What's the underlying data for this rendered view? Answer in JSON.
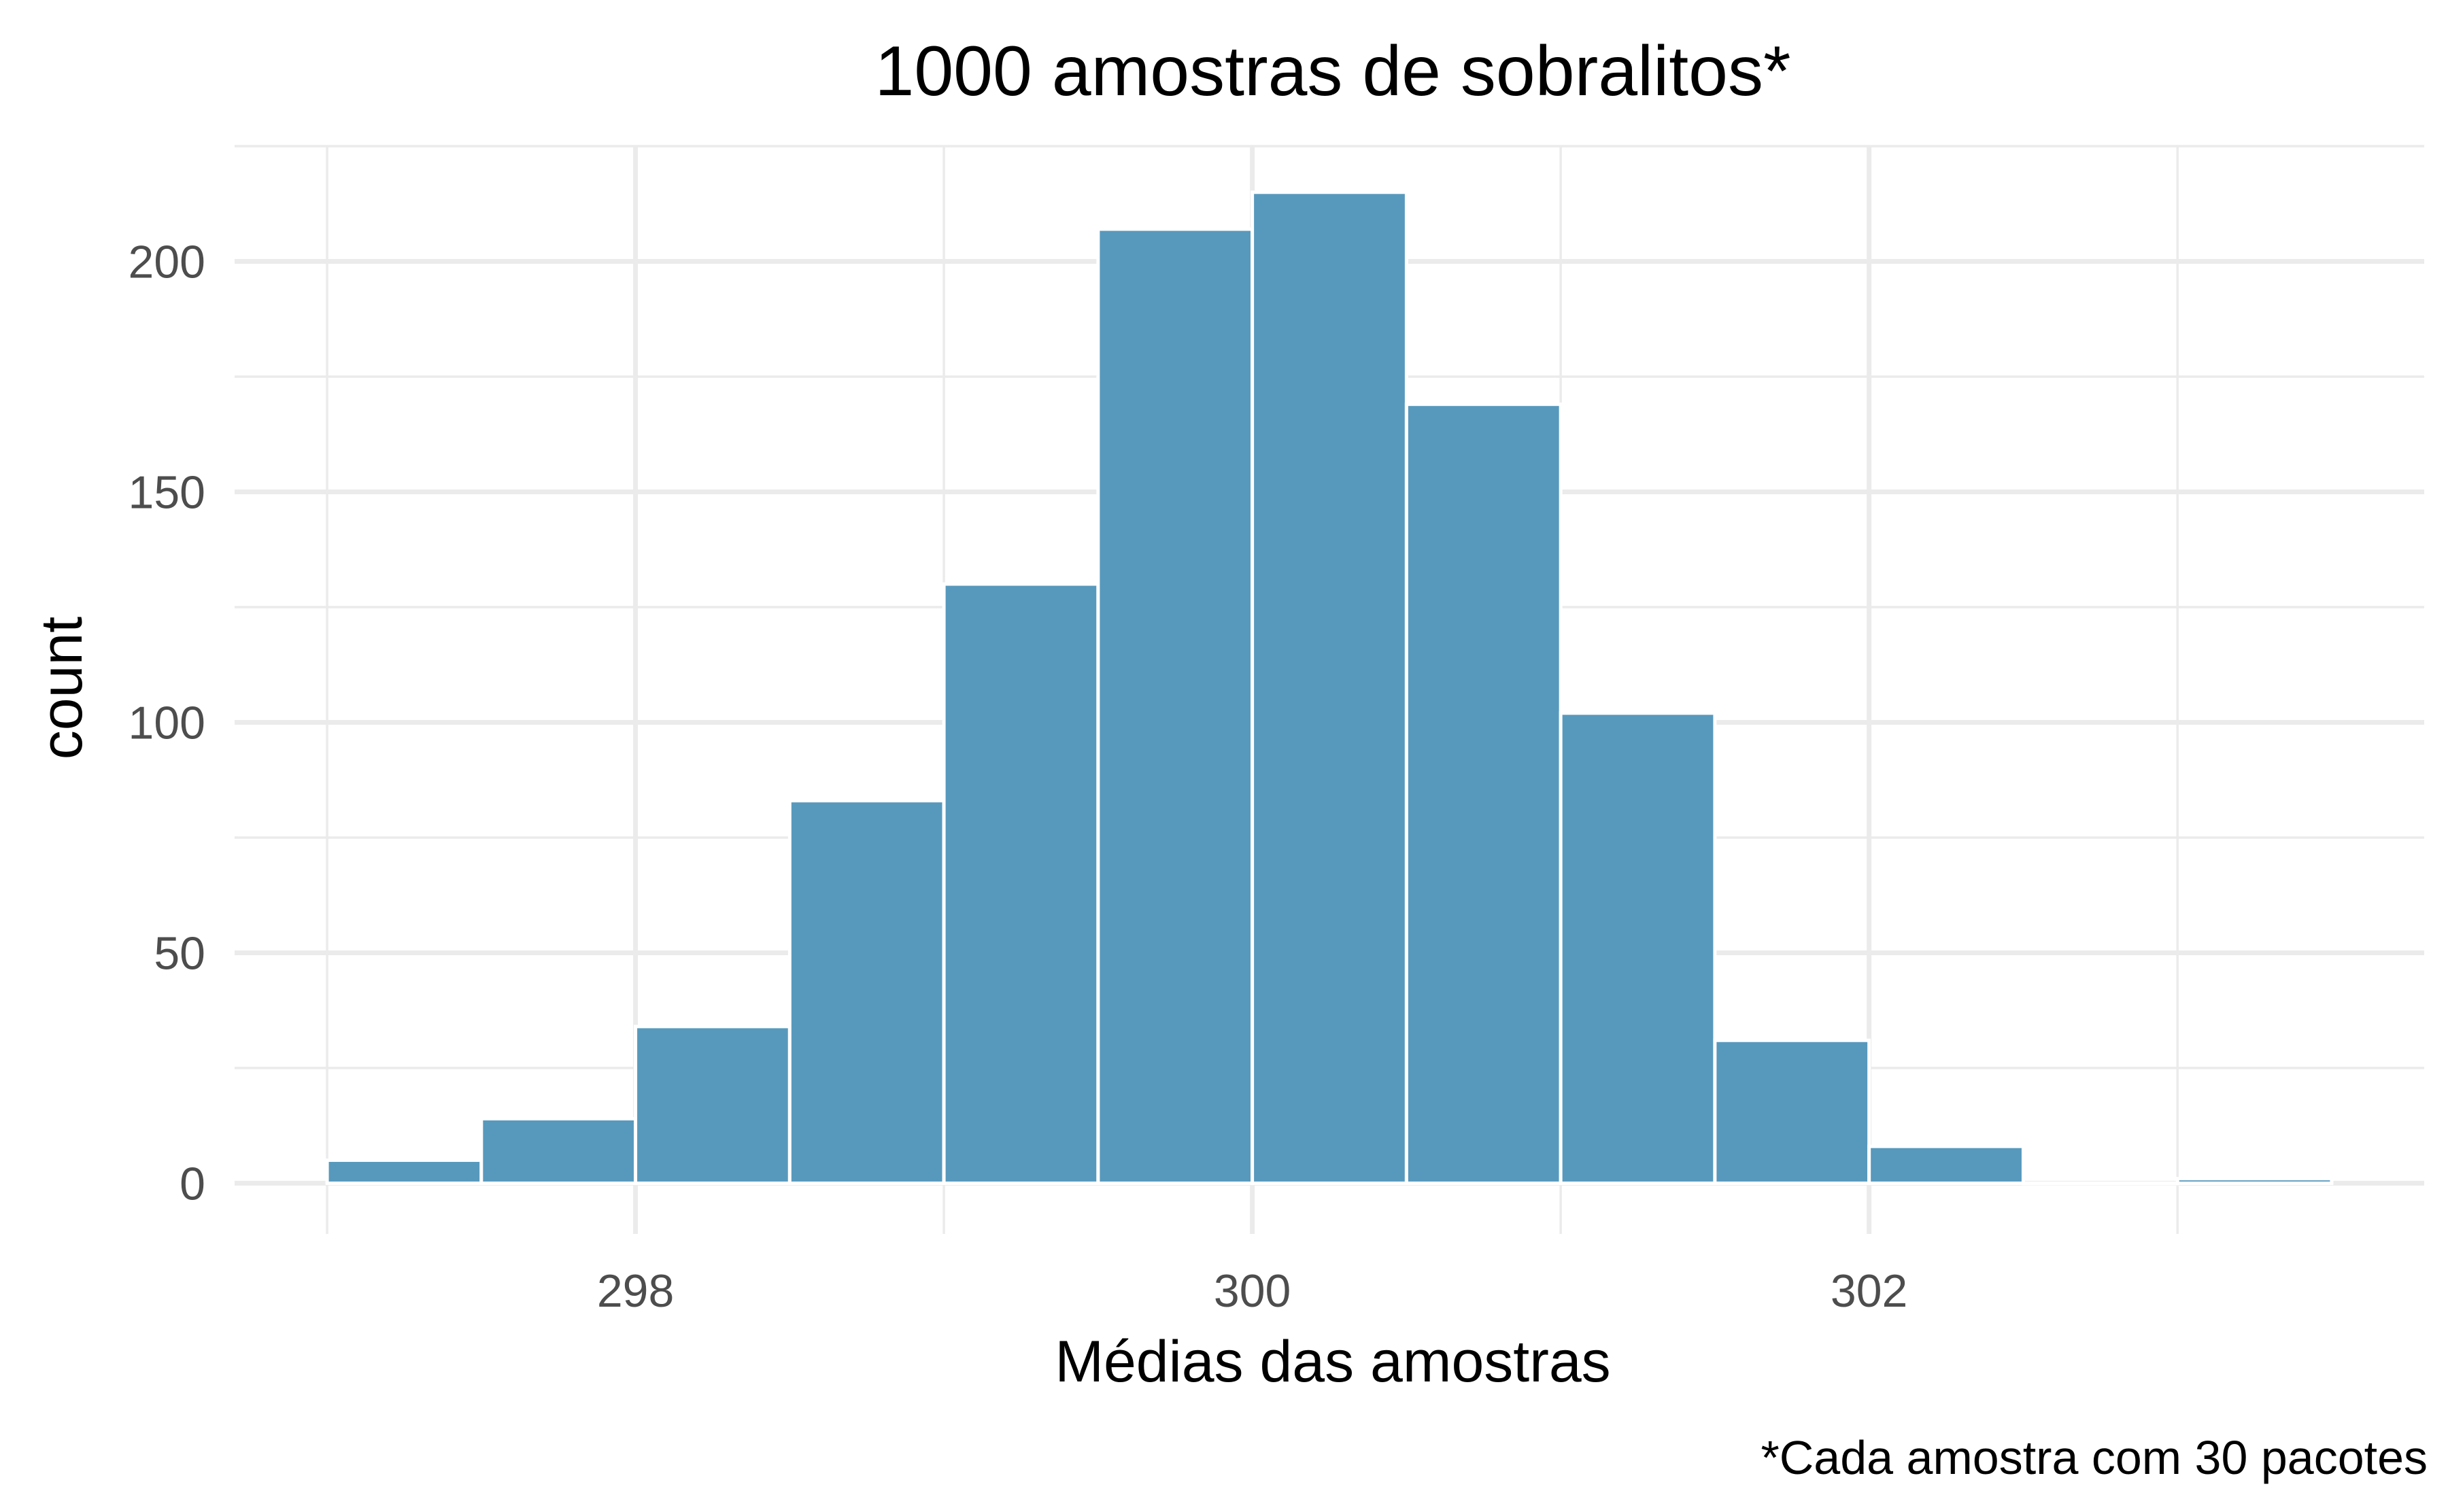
{
  "chart_data": {
    "type": "bar",
    "title": "1000 amostras de sobralitos*",
    "xlabel": "Médias das amostras",
    "ylabel": "count",
    "caption": "*Cada amostra com 30 pacotes",
    "bar_color": "#5799BD",
    "grid": true,
    "xlim": [
      296.7,
      303.8
    ],
    "ylim": [
      -11,
      225
    ],
    "x_ticks": [
      298,
      300,
      302
    ],
    "x_tick_labels": [
      "298",
      "300",
      "302"
    ],
    "y_ticks": [
      0,
      50,
      100,
      150,
      200
    ],
    "y_tick_labels": [
      "0",
      "50",
      "100",
      "150",
      "200"
    ],
    "bins": [
      {
        "x_start": 297.0,
        "x_end": 297.5,
        "count": 5
      },
      {
        "x_start": 297.5,
        "x_end": 298.0,
        "count": 14
      },
      {
        "x_start": 298.0,
        "x_end": 298.5,
        "count": 34
      },
      {
        "x_start": 298.5,
        "x_end": 299.0,
        "count": 83
      },
      {
        "x_start": 299.0,
        "x_end": 299.5,
        "count": 130
      },
      {
        "x_start": 299.5,
        "x_end": 300.0,
        "count": 207
      },
      {
        "x_start": 300.0,
        "x_end": 300.5,
        "count": 215
      },
      {
        "x_start": 300.5,
        "x_end": 301.0,
        "count": 169
      },
      {
        "x_start": 301.0,
        "x_end": 301.5,
        "count": 102
      },
      {
        "x_start": 301.5,
        "x_end": 302.0,
        "count": 31
      },
      {
        "x_start": 302.0,
        "x_end": 302.5,
        "count": 8
      },
      {
        "x_start": 302.5,
        "x_end": 303.0,
        "count": 0
      },
      {
        "x_start": 303.0,
        "x_end": 303.5,
        "count": 1
      }
    ]
  }
}
